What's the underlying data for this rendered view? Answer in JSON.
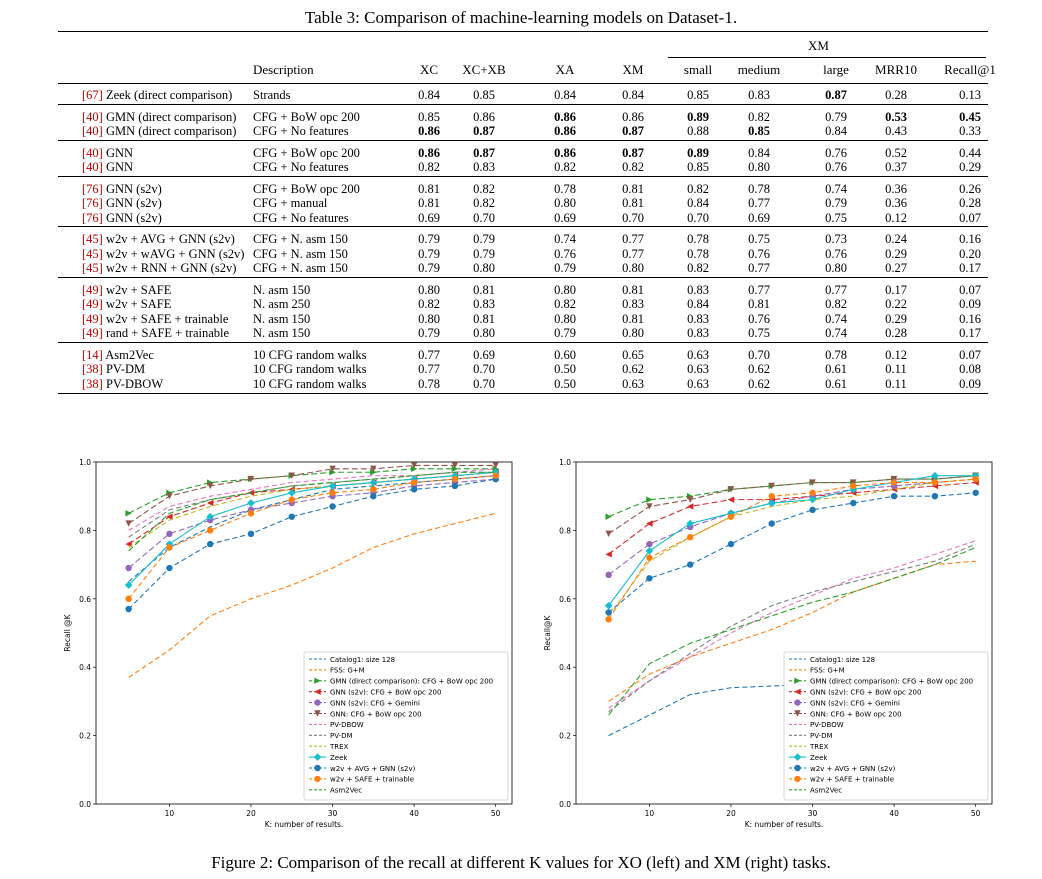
{
  "table": {
    "caption": "Table 3: Comparison of machine-learning models on Dataset-1.",
    "xm_group_label": "XM",
    "headers": [
      "Description",
      "XC",
      "XC+XB",
      "XA",
      "XM",
      "small",
      "medium",
      "large",
      "MRR10",
      "Recall@1"
    ],
    "groups": [
      [
        {
          "cite": "[67]",
          "name": " Zeek (direct comparison)",
          "desc": "Strands",
          "vals": [
            "0.84",
            "0.85",
            "0.84",
            "0.84",
            "0.85",
            "0.83",
            "0.87",
            "0.28",
            "0.13"
          ],
          "bold": [
            6
          ]
        }
      ],
      [
        {
          "cite": "[40]",
          "name": " GMN (direct comparison)",
          "desc": "CFG + BoW opc 200",
          "vals": [
            "0.85",
            "0.86",
            "0.86",
            "0.86",
            "0.89",
            "0.82",
            "0.79",
            "0.53",
            "0.45"
          ],
          "bold": [
            2,
            4,
            7,
            8
          ]
        },
        {
          "cite": "[40]",
          "name": " GMN (direct comparison)",
          "desc": "CFG + No features",
          "vals": [
            "0.86",
            "0.87",
            "0.86",
            "0.87",
            "0.88",
            "0.85",
            "0.84",
            "0.43",
            "0.33"
          ],
          "bold": [
            0,
            1,
            2,
            3,
            5
          ]
        }
      ],
      [
        {
          "cite": "[40]",
          "name": " GNN",
          "desc": "CFG + BoW opc 200",
          "vals": [
            "0.86",
            "0.87",
            "0.86",
            "0.87",
            "0.89",
            "0.84",
            "0.76",
            "0.52",
            "0.44"
          ],
          "bold": [
            0,
            1,
            2,
            3,
            4
          ]
        },
        {
          "cite": "[40]",
          "name": " GNN",
          "desc": "CFG + No features",
          "vals": [
            "0.82",
            "0.83",
            "0.82",
            "0.82",
            "0.85",
            "0.80",
            "0.76",
            "0.37",
            "0.29"
          ],
          "bold": []
        }
      ],
      [
        {
          "cite": "[76]",
          "name": " GNN (s2v)",
          "desc": "CFG + BoW opc 200",
          "vals": [
            "0.81",
            "0.82",
            "0.78",
            "0.81",
            "0.82",
            "0.78",
            "0.74",
            "0.36",
            "0.26"
          ],
          "bold": []
        },
        {
          "cite": "[76]",
          "name": " GNN (s2v)",
          "desc": "CFG + manual",
          "vals": [
            "0.81",
            "0.82",
            "0.80",
            "0.81",
            "0.84",
            "0.77",
            "0.79",
            "0.36",
            "0.28"
          ],
          "bold": []
        },
        {
          "cite": "[76]",
          "name": " GNN (s2v)",
          "desc": "CFG + No features",
          "vals": [
            "0.69",
            "0.70",
            "0.69",
            "0.70",
            "0.70",
            "0.69",
            "0.75",
            "0.12",
            "0.07"
          ],
          "bold": []
        }
      ],
      [
        {
          "cite": "[45]",
          "name": " w2v + AVG + GNN (s2v)",
          "desc": "CFG + N. asm 150",
          "vals": [
            "0.79",
            "0.79",
            "0.74",
            "0.77",
            "0.78",
            "0.75",
            "0.73",
            "0.24",
            "0.16"
          ],
          "bold": []
        },
        {
          "cite": "[45]",
          "name": " w2v + wAVG + GNN (s2v)",
          "desc": "CFG + N. asm 150",
          "vals": [
            "0.79",
            "0.79",
            "0.76",
            "0.77",
            "0.78",
            "0.76",
            "0.76",
            "0.29",
            "0.20"
          ],
          "bold": []
        },
        {
          "cite": "[45]",
          "name": " w2v + RNN + GNN (s2v)",
          "desc": "CFG + N. asm 150",
          "vals": [
            "0.79",
            "0.80",
            "0.79",
            "0.80",
            "0.82",
            "0.77",
            "0.80",
            "0.27",
            "0.17"
          ],
          "bold": []
        }
      ],
      [
        {
          "cite": "[49]",
          "name": " w2v + SAFE",
          "desc": "N. asm 150",
          "vals": [
            "0.80",
            "0.81",
            "0.80",
            "0.81",
            "0.83",
            "0.77",
            "0.77",
            "0.17",
            "0.07"
          ],
          "bold": []
        },
        {
          "cite": "[49]",
          "name": " w2v + SAFE",
          "desc": "N. asm 250",
          "vals": [
            "0.82",
            "0.83",
            "0.82",
            "0.83",
            "0.84",
            "0.81",
            "0.82",
            "0.22",
            "0.09"
          ],
          "bold": []
        },
        {
          "cite": "[49]",
          "name": " w2v + SAFE + trainable",
          "desc": "N. asm 150",
          "vals": [
            "0.80",
            "0.81",
            "0.80",
            "0.81",
            "0.83",
            "0.76",
            "0.74",
            "0.29",
            "0.16"
          ],
          "bold": []
        },
        {
          "cite": "[49]",
          "name": " rand + SAFE + trainable",
          "desc": "N. asm 150",
          "vals": [
            "0.79",
            "0.80",
            "0.79",
            "0.80",
            "0.83",
            "0.75",
            "0.74",
            "0.28",
            "0.17"
          ],
          "bold": []
        }
      ],
      [
        {
          "cite": "[14]",
          "name": " Asm2Vec",
          "desc": "10 CFG random walks",
          "vals": [
            "0.77",
            "0.69",
            "0.60",
            "0.65",
            "0.63",
            "0.70",
            "0.78",
            "0.12",
            "0.07"
          ],
          "bold": []
        },
        {
          "cite": "[38]",
          "name": " PV-DM",
          "desc": "10 CFG random walks",
          "vals": [
            "0.77",
            "0.70",
            "0.50",
            "0.62",
            "0.63",
            "0.62",
            "0.61",
            "0.11",
            "0.08"
          ],
          "bold": []
        },
        {
          "cite": "[38]",
          "name": " PV-DBOW",
          "desc": "10 CFG random walks",
          "vals": [
            "0.78",
            "0.70",
            "0.50",
            "0.63",
            "0.63",
            "0.62",
            "0.61",
            "0.11",
            "0.09"
          ],
          "bold": []
        }
      ]
    ]
  },
  "figure_caption": "Figure 2: Comparison of the recall at different K values for XO (left) and XM (right) tasks.",
  "chart_data": [
    {
      "type": "line",
      "title": "XO",
      "xlabel": "K: number of results.",
      "ylabel": "Recall @K",
      "xlim": [
        1,
        52
      ],
      "ylim": [
        0.0,
        1.0
      ],
      "xticks": [
        10,
        20,
        30,
        40,
        50
      ],
      "yticks": [
        0.0,
        0.2,
        0.4,
        0.6,
        0.8,
        1.0
      ],
      "x": [
        5,
        10,
        15,
        20,
        25,
        30,
        35,
        40,
        45,
        50
      ],
      "legend_position": "lower-right",
      "series": [
        {
          "name": "Catalog1: size 128",
          "color": "#1f77b4",
          "marker": "none",
          "values": [
            0.65,
            0.75,
            0.81,
            0.86,
            0.89,
            0.92,
            0.93,
            0.94,
            0.95,
            0.96
          ]
        },
        {
          "name": "FSS: G+M",
          "color": "#ff7f0e",
          "marker": "none",
          "values": [
            0.37,
            0.45,
            0.55,
            0.6,
            0.64,
            0.69,
            0.75,
            0.79,
            0.82,
            0.85
          ]
        },
        {
          "name": "GMN (direct comparison): CFG + BoW opc 200",
          "color": "#2ca02c",
          "marker": ">",
          "values": [
            0.85,
            0.91,
            0.94,
            0.95,
            0.96,
            0.97,
            0.97,
            0.98,
            0.98,
            0.98
          ]
        },
        {
          "name": "GNN (s2v): CFG + BoW opc 200",
          "color": "#d62728",
          "marker": "<",
          "values": [
            0.76,
            0.84,
            0.88,
            0.91,
            0.92,
            0.93,
            0.94,
            0.95,
            0.96,
            0.97
          ]
        },
        {
          "name": "GNN (s2v): CFG + Gemini",
          "color": "#9467bd",
          "marker": "o",
          "values": [
            0.69,
            0.79,
            0.83,
            0.86,
            0.88,
            0.9,
            0.91,
            0.93,
            0.94,
            0.95
          ]
        },
        {
          "name": "GNN: CFG + BoW opc 200",
          "color": "#8c564b",
          "marker": "v",
          "values": [
            0.82,
            0.9,
            0.93,
            0.95,
            0.96,
            0.98,
            0.98,
            0.99,
            0.99,
            0.99
          ]
        },
        {
          "name": "PV-DBOW",
          "color": "#e377c2",
          "marker": "none",
          "values": [
            0.8,
            0.87,
            0.9,
            0.92,
            0.94,
            0.95,
            0.96,
            0.96,
            0.97,
            0.98
          ]
        },
        {
          "name": "PV-DM",
          "color": "#7f7f7f",
          "marker": "none",
          "values": [
            0.78,
            0.86,
            0.89,
            0.91,
            0.93,
            0.94,
            0.95,
            0.96,
            0.97,
            0.97
          ]
        },
        {
          "name": "TREX",
          "color": "#bcbd22",
          "marker": "none",
          "values": [
            0.75,
            0.83,
            0.87,
            0.9,
            0.92,
            0.93,
            0.94,
            0.95,
            0.96,
            0.97
          ]
        },
        {
          "name": "Zeek",
          "color": "#17becf",
          "marker": "D",
          "values": [
            0.64,
            0.76,
            0.84,
            0.88,
            0.91,
            0.93,
            0.94,
            0.95,
            0.96,
            0.97
          ]
        },
        {
          "name": "w2v + AVG + GNN (s2v)",
          "color": "#1f77b4",
          "marker": "o",
          "values": [
            0.57,
            0.69,
            0.76,
            0.79,
            0.84,
            0.87,
            0.9,
            0.92,
            0.93,
            0.95
          ]
        },
        {
          "name": "w2v + SAFE + trainable",
          "color": "#ff7f0e",
          "marker": "o",
          "values": [
            0.6,
            0.75,
            0.8,
            0.85,
            0.89,
            0.91,
            0.92,
            0.94,
            0.95,
            0.96
          ]
        },
        {
          "name": "Asm2Vec",
          "color": "#2ca02c",
          "marker": "none",
          "values": [
            0.74,
            0.85,
            0.89,
            0.91,
            0.93,
            0.94,
            0.95,
            0.96,
            0.97,
            0.97
          ]
        }
      ]
    },
    {
      "type": "line",
      "title": "XM",
      "xlabel": "K: number of results.",
      "ylabel": "Recall@K",
      "xlim": [
        1,
        52
      ],
      "ylim": [
        0.0,
        1.0
      ],
      "xticks": [
        10,
        20,
        30,
        40,
        50
      ],
      "yticks": [
        0.0,
        0.2,
        0.4,
        0.6,
        0.8,
        1.0
      ],
      "x": [
        5,
        10,
        15,
        20,
        25,
        30,
        35,
        40,
        45,
        50
      ],
      "legend_position": "lower-right",
      "series": [
        {
          "name": "Catalog1: size 128",
          "color": "#1f77b4",
          "marker": "none",
          "values": [
            0.2,
            0.26,
            0.32,
            0.34,
            0.345,
            0.35,
            0.35,
            0.35,
            0.35,
            0.35
          ]
        },
        {
          "name": "FSS: G+M",
          "color": "#ff7f0e",
          "marker": "none",
          "values": [
            0.3,
            0.38,
            0.43,
            0.47,
            0.51,
            0.56,
            0.62,
            0.66,
            0.7,
            0.71
          ]
        },
        {
          "name": "GMN (direct comparison): CFG + BoW opc 200",
          "color": "#2ca02c",
          "marker": ">",
          "values": [
            0.84,
            0.89,
            0.9,
            0.92,
            0.93,
            0.94,
            0.94,
            0.95,
            0.95,
            0.96
          ]
        },
        {
          "name": "GNN (s2v): CFG + BoW opc 200",
          "color": "#d62728",
          "marker": "<",
          "values": [
            0.73,
            0.82,
            0.87,
            0.89,
            0.89,
            0.9,
            0.91,
            0.92,
            0.93,
            0.94
          ]
        },
        {
          "name": "GNN (s2v): CFG + Gemini",
          "color": "#9467bd",
          "marker": "o",
          "values": [
            0.67,
            0.76,
            0.81,
            0.85,
            0.88,
            0.9,
            0.92,
            0.93,
            0.94,
            0.95
          ]
        },
        {
          "name": "GNN: CFG + BoW opc 200",
          "color": "#8c564b",
          "marker": "v",
          "values": [
            0.79,
            0.87,
            0.89,
            0.92,
            0.93,
            0.94,
            0.94,
            0.95,
            0.95,
            0.96
          ]
        },
        {
          "name": "PV-DBOW",
          "color": "#e377c2",
          "marker": "none",
          "values": [
            0.28,
            0.36,
            0.43,
            0.5,
            0.56,
            0.61,
            0.66,
            0.69,
            0.73,
            0.77
          ]
        },
        {
          "name": "PV-DM",
          "color": "#7f7f7f",
          "marker": "none",
          "values": [
            0.27,
            0.36,
            0.44,
            0.52,
            0.58,
            0.62,
            0.65,
            0.68,
            0.71,
            0.76
          ]
        },
        {
          "name": "TREX",
          "color": "#bcbd22",
          "marker": "none",
          "values": [
            0.55,
            0.71,
            0.78,
            0.84,
            0.87,
            0.89,
            0.9,
            0.92,
            0.94,
            0.95
          ]
        },
        {
          "name": "Zeek",
          "color": "#17becf",
          "marker": "D",
          "values": [
            0.58,
            0.74,
            0.82,
            0.85,
            0.88,
            0.89,
            0.92,
            0.94,
            0.96,
            0.96
          ]
        },
        {
          "name": "w2v + AVG + GNN (s2v)",
          "color": "#1f77b4",
          "marker": "o",
          "values": [
            0.56,
            0.66,
            0.7,
            0.76,
            0.82,
            0.86,
            0.88,
            0.9,
            0.9,
            0.91
          ]
        },
        {
          "name": "w2v + SAFE + trainable",
          "color": "#ff7f0e",
          "marker": "o",
          "values": [
            0.54,
            0.72,
            0.78,
            0.84,
            0.9,
            0.91,
            0.93,
            0.94,
            0.94,
            0.95
          ]
        },
        {
          "name": "Asm2Vec",
          "color": "#2ca02c",
          "marker": "none",
          "values": [
            0.26,
            0.41,
            0.47,
            0.51,
            0.55,
            0.59,
            0.62,
            0.66,
            0.7,
            0.75
          ]
        }
      ]
    }
  ]
}
